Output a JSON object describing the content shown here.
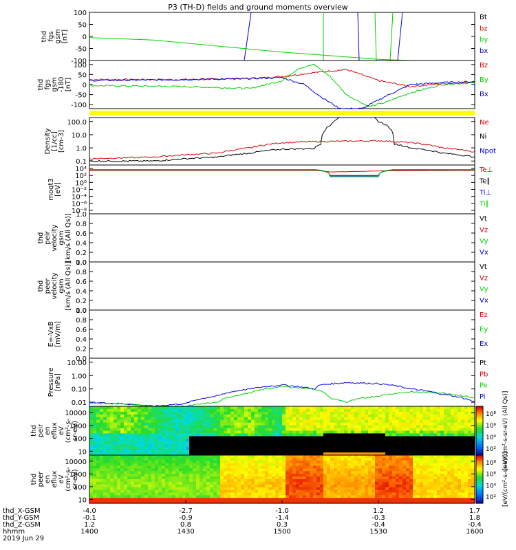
{
  "title": "P3 (TH-D) fields and ground moments overview",
  "colors": {
    "black": "#000000",
    "red": "#e00000",
    "green": "#00d000",
    "blue": "#0000e0",
    "yellow": "#ffff00"
  },
  "panels": [
    {
      "id": "fgs-gsm",
      "ylabel": [
        "thd",
        "fgs",
        "gsm",
        "[nT]"
      ],
      "scale": "linear",
      "ylim": [
        -100,
        100
      ],
      "ticks": [
        {
          "v": 100,
          "t": "100"
        },
        {
          "v": 50,
          "t": "50"
        },
        {
          "v": 0,
          "t": "0"
        },
        {
          "v": -50,
          "t": "-50"
        },
        {
          "v": -100,
          "t": "-100"
        }
      ],
      "legend": [
        {
          "text": "Bt",
          "color": "#000000"
        },
        {
          "text": "bz",
          "color": "#e00000"
        },
        {
          "text": "by",
          "color": "#00d000"
        },
        {
          "text": "bx",
          "color": "#0000e0"
        }
      ]
    },
    {
      "id": "fgs-gsm-180",
      "ylabel": [
        "thd",
        "fgs",
        "gsm",
        "-180",
        "[nT]"
      ],
      "scale": "linear",
      "ylim": [
        -120,
        120
      ],
      "ticks": [
        {
          "v": 100,
          "t": "100"
        },
        {
          "v": 50,
          "t": "50"
        },
        {
          "v": 0,
          "t": "0"
        },
        {
          "v": -50,
          "t": "-50"
        },
        {
          "v": -100,
          "t": "-100"
        }
      ],
      "legend": [
        {
          "text": "Bz",
          "color": "#e00000"
        },
        {
          "text": "By",
          "color": "#00d000"
        },
        {
          "text": "Bx",
          "color": "#0000e0"
        }
      ]
    },
    {
      "id": "density",
      "ylabel": [
        "Density",
        "[1/cc]",
        "[cm-3]"
      ],
      "scale": "log",
      "ylim": [
        0.05,
        200
      ],
      "ticks": [
        {
          "v": 100,
          "t": "100.0"
        },
        {
          "v": 10,
          "t": "10.0"
        },
        {
          "v": 1,
          "t": "1.0"
        },
        {
          "v": 0.1,
          "t": "0.1"
        }
      ],
      "legend": [
        {
          "text": "Ne",
          "color": "#e00000"
        },
        {
          "text": "Ni",
          "color": "#000000"
        },
        {
          "text": "Npot",
          "color": "#0000e0"
        }
      ]
    },
    {
      "id": "temperature",
      "ylabel": [
        "moqt3",
        "[eV]"
      ],
      "scale": "log",
      "ylim": [
        1e-09,
        100000.0
      ],
      "ticks": [
        {
          "v": 10000,
          "t": "10⁴"
        },
        {
          "v": 100,
          "t": "10²"
        },
        {
          "v": 1,
          "t": "10⁰"
        },
        {
          "v": 0.01,
          "t": "10⁻²"
        },
        {
          "v": 0.0001,
          "t": "10⁻⁴"
        },
        {
          "v": 1e-06,
          "t": "10⁻⁶"
        },
        {
          "v": 1e-08,
          "t": "10⁻⁸"
        }
      ],
      "legend": [
        {
          "text": "Te⊥",
          "color": "#e00000"
        },
        {
          "text": "Te∥",
          "color": "#000000"
        },
        {
          "text": "Ti⊥",
          "color": "#0000e0"
        },
        {
          "text": "Ti∥",
          "color": "#00d000"
        }
      ]
    },
    {
      "id": "peir-velocity",
      "ylabel": [
        "thd",
        "peir",
        "velocity",
        "gsm",
        "[km/s (All Qs)]"
      ],
      "scale": "linear",
      "ylim": [
        0,
        1
      ],
      "ticks": [
        {
          "v": 1,
          "t": "1.0"
        },
        {
          "v": 0.8,
          "t": "0.8"
        },
        {
          "v": 0.6,
          "t": "0.6"
        },
        {
          "v": 0.4,
          "t": "0.4"
        },
        {
          "v": 0.2,
          "t": "0.2"
        },
        {
          "v": 0,
          "t": "0.0"
        }
      ],
      "legend": [
        {
          "text": "Vt",
          "color": "#000000"
        },
        {
          "text": "Vz",
          "color": "#e00000"
        },
        {
          "text": "Vy",
          "color": "#00d000"
        },
        {
          "text": "Vx",
          "color": "#0000e0"
        }
      ]
    },
    {
      "id": "peer-velocity",
      "ylabel": [
        "thd",
        "peer",
        "velocity",
        "gsm",
        "[km/s (All Qs)]"
      ],
      "scale": "linear",
      "ylim": [
        0,
        1
      ],
      "ticks": [
        {
          "v": 1,
          "t": "1.0"
        },
        {
          "v": 0.8,
          "t": "0.8"
        },
        {
          "v": 0.6,
          "t": "0.6"
        },
        {
          "v": 0.4,
          "t": "0.4"
        },
        {
          "v": 0.2,
          "t": "0.2"
        },
        {
          "v": 0,
          "t": "0.0"
        }
      ],
      "legend": [
        {
          "text": "Vt",
          "color": "#000000"
        },
        {
          "text": "Vz",
          "color": "#e00000"
        },
        {
          "text": "Vy",
          "color": "#00d000"
        },
        {
          "text": "Vx",
          "color": "#0000e0"
        }
      ]
    },
    {
      "id": "efield",
      "ylabel": [
        "E=-VxB",
        "[mV/m]"
      ],
      "scale": "linear",
      "ylim": [
        0,
        1
      ],
      "ticks": [
        {
          "v": 1,
          "t": "1.0"
        },
        {
          "v": 0.8,
          "t": "0.8"
        },
        {
          "v": 0.6,
          "t": "0.6"
        },
        {
          "v": 0.4,
          "t": "0.4"
        },
        {
          "v": 0.2,
          "t": "0.2"
        },
        {
          "v": 0,
          "t": "0.0"
        }
      ],
      "legend": [
        {
          "text": "Ez",
          "color": "#e00000"
        },
        {
          "text": "Ey",
          "color": "#00d000"
        },
        {
          "text": "Ex",
          "color": "#0000e0"
        }
      ]
    },
    {
      "id": "pressure",
      "ylabel": [
        "Pressure",
        "[nPa]"
      ],
      "scale": "log",
      "ylim": [
        0.005,
        20
      ],
      "ticks": [
        {
          "v": 10,
          "t": "10.00"
        },
        {
          "v": 1,
          "t": "1.00"
        },
        {
          "v": 0.1,
          "t": "0.10"
        },
        {
          "v": 0.01,
          "t": "0.01"
        }
      ],
      "legend": [
        {
          "text": "Pt",
          "color": "#000000"
        },
        {
          "text": "Pb",
          "color": "#e00000"
        },
        {
          "text": "Pe",
          "color": "#00d000"
        },
        {
          "text": "Pi",
          "color": "#0000e0"
        }
      ]
    },
    {
      "id": "peir-eflux",
      "ylabel": [
        "thd",
        "peir",
        "en",
        "eflux",
        "eV",
        "(cm²-s-",
        "sr-eV)"
      ],
      "scale": "log",
      "ylim": [
        5,
        30000
      ],
      "ticks": [
        {
          "v": 10000,
          "t": "10000"
        },
        {
          "v": 1000,
          "t": "1000"
        },
        {
          "v": 100,
          "t": "100"
        },
        {
          "v": 10,
          "t": "10"
        }
      ],
      "colorbar": {
        "label": "[eV/(cm²-s-sr-eV) (All Qs)]",
        "ticks": [
          "10⁸",
          "10⁶",
          "10⁴",
          "10²"
        ]
      }
    },
    {
      "id": "peer-eflux",
      "ylabel": [
        "thd",
        "peer",
        "en",
        "eflux",
        "eV",
        "(cm²-s-",
        "sr-eV)"
      ],
      "scale": "log",
      "ylim": [
        5,
        30000
      ],
      "ticks": [
        {
          "v": 10000,
          "t": "10000"
        },
        {
          "v": 1000,
          "t": "1000"
        },
        {
          "v": 100,
          "t": "100"
        },
        {
          "v": 10,
          "t": "10"
        }
      ],
      "colorbar": {
        "label": "[eV/(cm²-s-sr-eV)]",
        "ticks": [
          "10⁸",
          "10⁶",
          "10⁴",
          "10²"
        ]
      }
    }
  ],
  "xaxis": {
    "labels": [
      "thd_X-GSM",
      "thd_Y-GSM",
      "thd_Z-GSM",
      "hhmm",
      "2019 Jun 29"
    ],
    "ticks": [
      {
        "t": 1400,
        "vals": [
          "-4.0",
          "-0.1",
          "1.2",
          "1400"
        ]
      },
      {
        "t": 1430,
        "vals": [
          "-2.7",
          "-0.9",
          "0.8",
          "1430"
        ]
      },
      {
        "t": 1500,
        "vals": [
          "-1.0",
          "-1.4",
          "0.3",
          "1500"
        ]
      },
      {
        "t": 1530,
        "vals": [
          "1.2",
          "-0.3",
          "-0.4",
          "1530"
        ]
      },
      {
        "t": 1600,
        "vals": [
          "1.7",
          "1.8",
          "-0.4",
          "1600"
        ]
      }
    ]
  },
  "chart_data": [
    {
      "type": "line",
      "title": "P3 (TH-D) fields and ground moments overview",
      "panel": "fgs-gsm",
      "ylim": [
        -100,
        100
      ],
      "series": [
        {
          "name": "by",
          "color": "#00d000",
          "t": [
            0,
            20,
            40,
            60,
            80,
            90,
            100,
            110,
            111,
            112,
            113,
            114,
            115,
            116
          ],
          "values": [
            -5,
            -15,
            -40,
            -65,
            -85,
            -95,
            -100,
            -100,
            -100,
            -100,
            -100,
            -100,
            -100,
            -100
          ]
        },
        {
          "name": "bx",
          "color": "#0000e0",
          "t": [
            0,
            10,
            20,
            60,
            90,
            100,
            108,
            116
          ],
          "values": [
            -100,
            -100,
            -100,
            -100,
            -100,
            -100,
            -100,
            -100
          ]
        }
      ]
    },
    {
      "type": "line",
      "panel": "fgs-gsm-180",
      "ylim": [
        -120,
        120
      ],
      "series": [
        {
          "name": "Bz",
          "color": "#e00000",
          "t": [
            0,
            30,
            50,
            60,
            70,
            80,
            90,
            100,
            110,
            120
          ],
          "values": [
            25,
            25,
            30,
            40,
            60,
            75,
            20,
            -10,
            5,
            12
          ]
        },
        {
          "name": "By",
          "color": "#00d000",
          "t": [
            0,
            30,
            50,
            60,
            65,
            70,
            75,
            80,
            87,
            92,
            100,
            110,
            120
          ],
          "values": [
            -5,
            -10,
            -20,
            20,
            80,
            100,
            40,
            -50,
            -110,
            -90,
            -40,
            0,
            10
          ]
        },
        {
          "name": "Bx",
          "color": "#0000e0",
          "t": [
            0,
            30,
            50,
            60,
            67,
            72,
            78,
            85,
            92,
            100,
            110,
            120
          ],
          "values": [
            20,
            25,
            30,
            35,
            0,
            -60,
            -120,
            -120,
            -60,
            0,
            10,
            15
          ]
        }
      ]
    },
    {
      "type": "line",
      "panel": "density",
      "ylim": [
        0.05,
        200
      ],
      "series": [
        {
          "name": "Ne",
          "color": "#e00000",
          "t": [
            0,
            20,
            40,
            50,
            60,
            70,
            80,
            90,
            100,
            110,
            120
          ],
          "values": [
            0.15,
            0.2,
            0.4,
            1.0,
            2.5,
            3.0,
            3.2,
            3.5,
            2.5,
            1.0,
            0.5
          ]
        },
        {
          "name": "Ni",
          "color": "#000000",
          "t": [
            0,
            20,
            40,
            50,
            60,
            70,
            72,
            75,
            80,
            87,
            90,
            95,
            100,
            110,
            120
          ],
          "values": [
            0.1,
            0.1,
            0.2,
            0.4,
            0.8,
            0.9,
            2.0,
            50,
            300,
            300,
            100,
            2,
            1.0,
            0.4,
            0.2
          ]
        }
      ]
    },
    {
      "type": "line",
      "panel": "temperature",
      "ylim": [
        1e-09,
        100000.0
      ],
      "series": [
        {
          "name": "Te⊥",
          "color": "#e00000",
          "t": [
            0,
            70,
            75,
            85,
            95,
            120
          ],
          "values": [
            3000,
            3000,
            1000,
            1500,
            2500,
            3000
          ]
        },
        {
          "name": "Te∥",
          "color": "#000000",
          "t": [
            0,
            70,
            75,
            90,
            95,
            120
          ],
          "values": [
            4000,
            4000,
            100,
            100,
            4000,
            4000
          ]
        },
        {
          "name": "Ti⊥",
          "color": "#0000e0",
          "t": [
            0,
            70,
            75,
            90,
            95,
            120
          ],
          "values": [
            5000,
            5000,
            50,
            50,
            5000,
            5000
          ]
        },
        {
          "name": "Ti∥",
          "color": "#00d000",
          "t": [
            0,
            70,
            75,
            90,
            95,
            120
          ],
          "values": [
            5000,
            5000,
            40,
            40,
            5000,
            5000
          ]
        }
      ]
    },
    {
      "type": "line",
      "panel": "pressure",
      "ylim": [
        0.005,
        20
      ],
      "series": [
        {
          "name": "Pi",
          "color": "#0000e0",
          "t": [
            0,
            10,
            20,
            30,
            40,
            50,
            60,
            70,
            72,
            80,
            90,
            100,
            110,
            120
          ],
          "values": [
            0.01,
            0.008,
            0.005,
            0.008,
            0.03,
            0.1,
            0.2,
            0.1,
            0.2,
            0.3,
            0.25,
            0.1,
            0.04,
            0.01
          ]
        },
        {
          "name": "Pe",
          "color": "#00d000",
          "t": [
            0,
            10,
            20,
            30,
            40,
            50,
            60,
            70,
            75,
            80,
            90,
            100,
            110,
            120
          ],
          "values": [
            0.008,
            0.008,
            0.005,
            0.005,
            0.01,
            0.05,
            0.15,
            0.1,
            0.02,
            0.01,
            0.03,
            0.06,
            0.05,
            0.02
          ]
        }
      ]
    },
    {
      "type": "heatmap",
      "panel": "peir-eflux",
      "ylim": [
        5,
        30000
      ]
    },
    {
      "type": "heatmap",
      "panel": "peer-eflux",
      "ylim": [
        5,
        30000
      ]
    }
  ]
}
